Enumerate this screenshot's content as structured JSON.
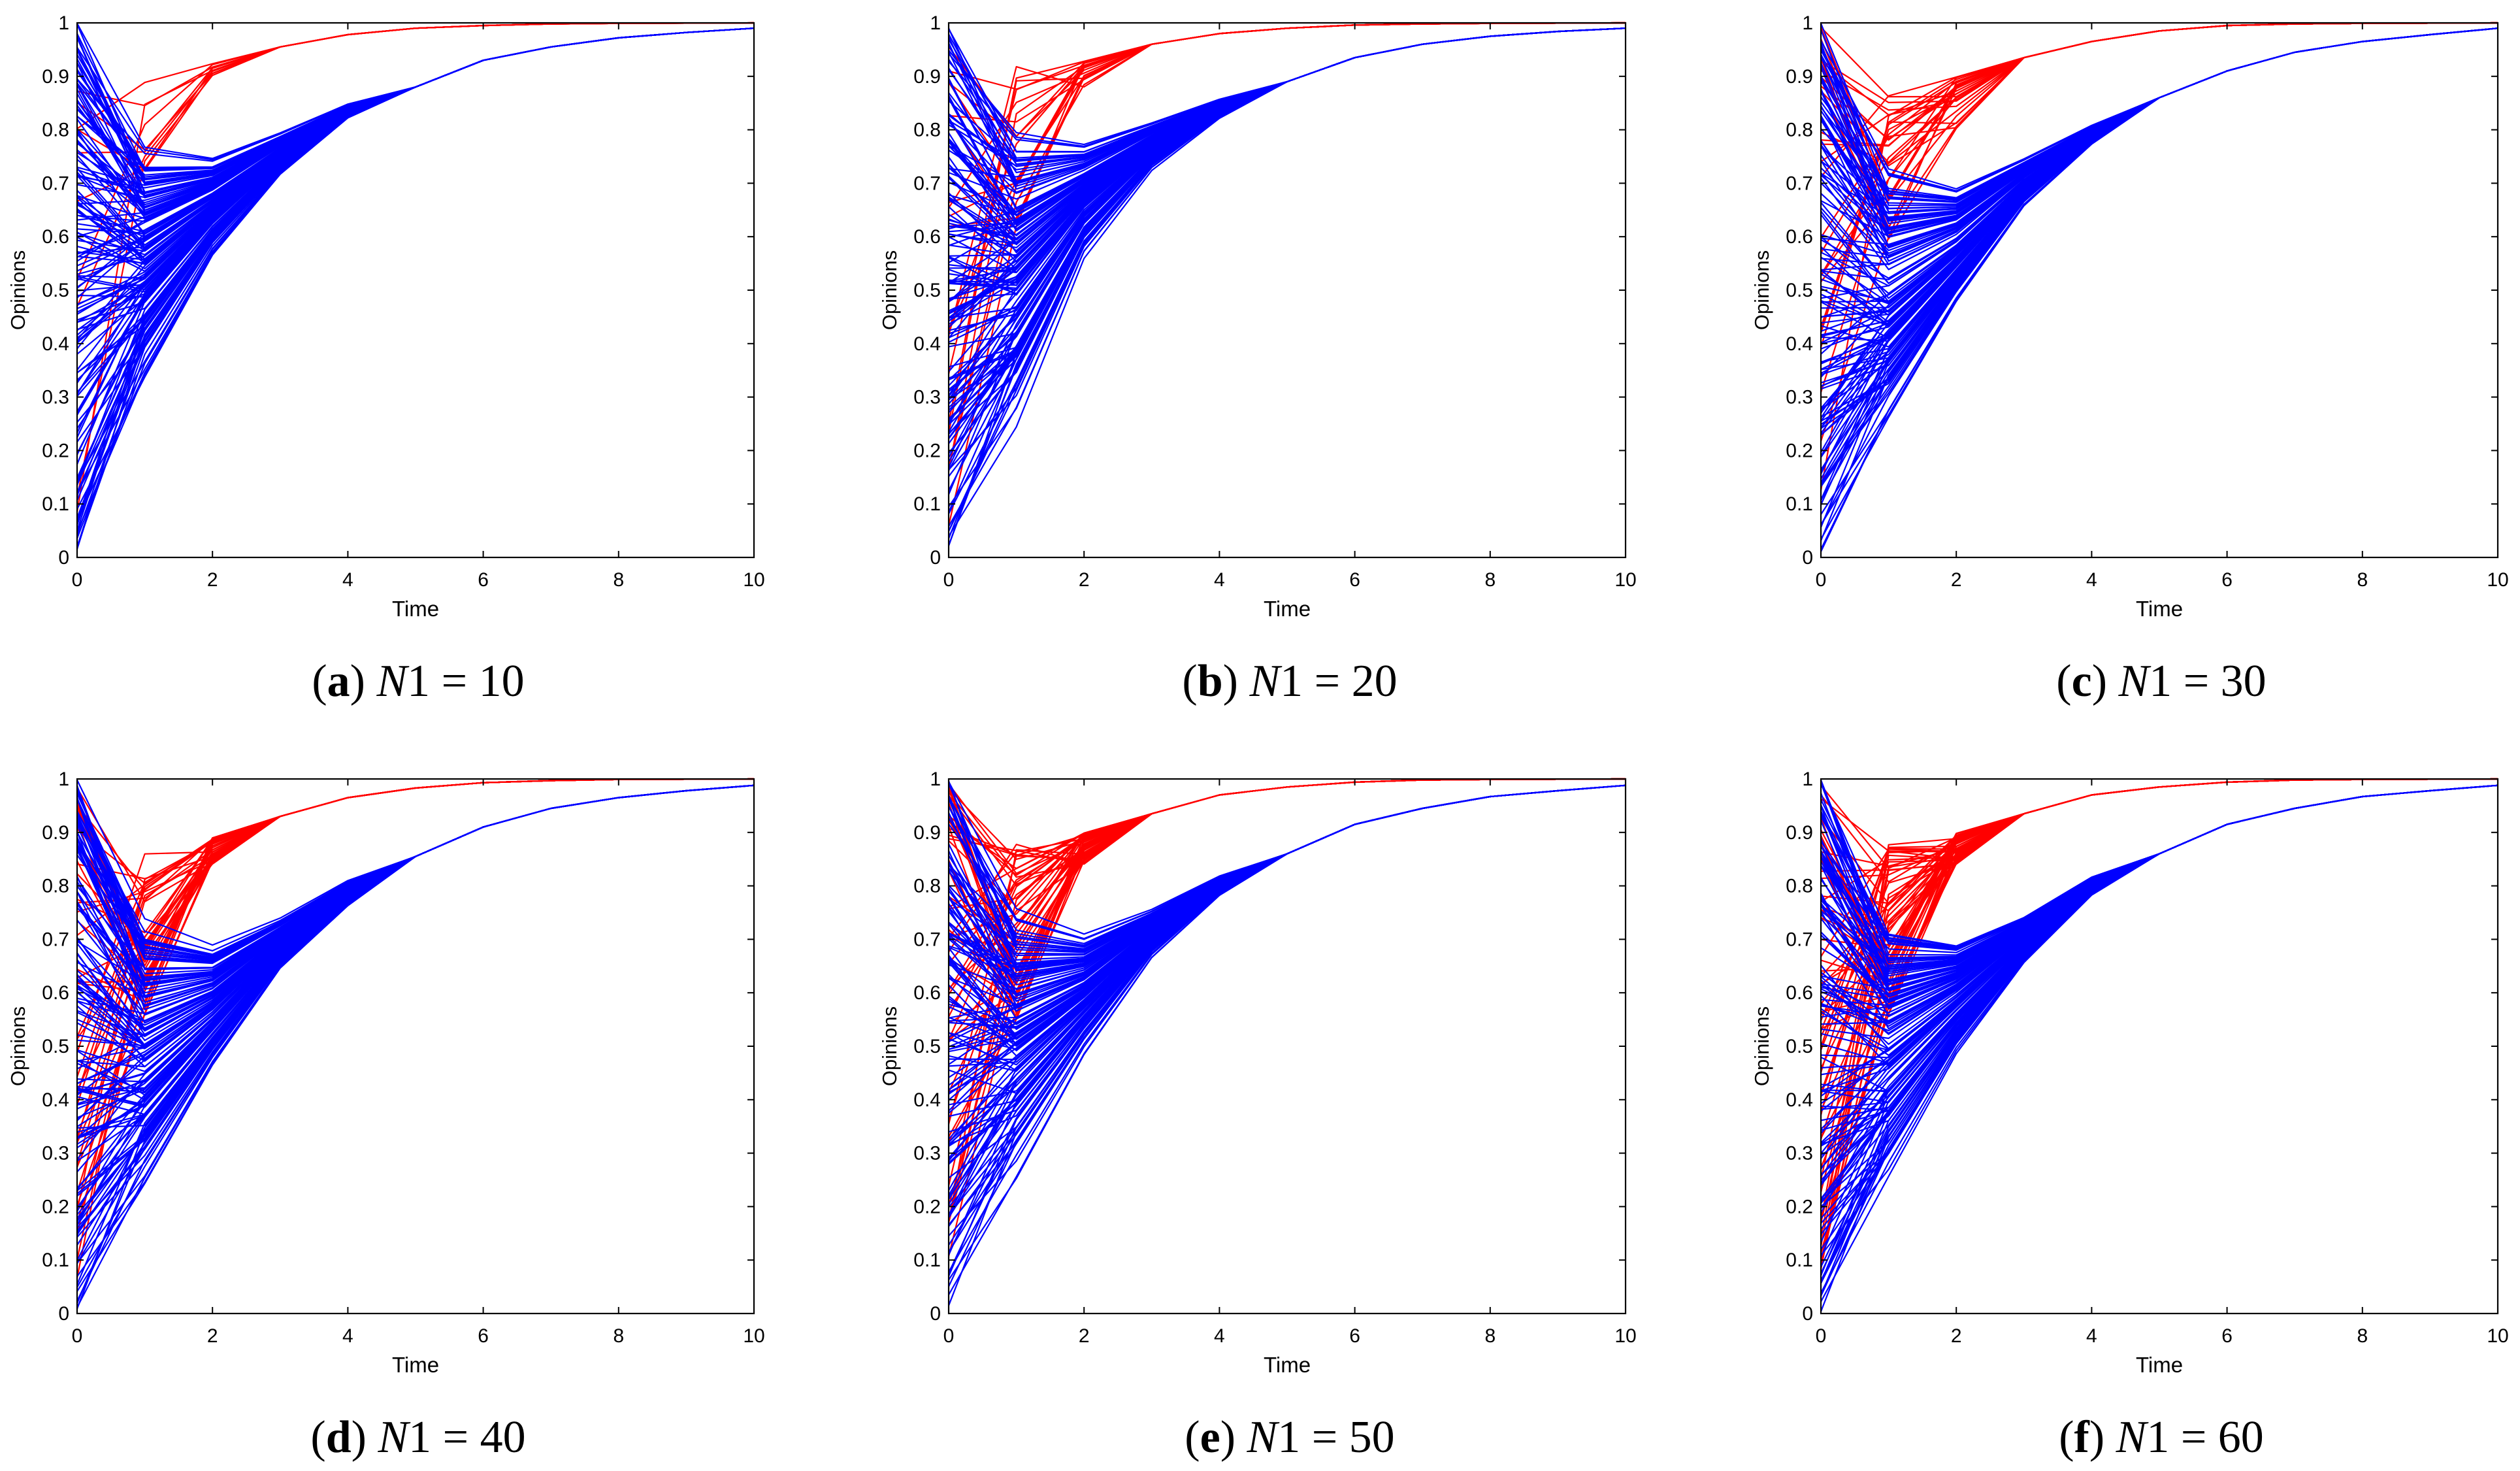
{
  "figure": {
    "panels": [
      {
        "letter": "a",
        "var": "N",
        "rest": "1 = 10"
      },
      {
        "letter": "b",
        "var": "N",
        "rest": "1 = 20"
      },
      {
        "letter": "c",
        "var": "N",
        "rest": "1 = 30"
      },
      {
        "letter": "d",
        "var": "N",
        "rest": "1 = 40"
      },
      {
        "letter": "e",
        "var": "N",
        "rest": "1 = 50"
      },
      {
        "letter": "f",
        "var": "N",
        "rest": "1 = 60"
      }
    ]
  },
  "chart_data": [
    {
      "type": "line",
      "caption": "(a) N1 = 10",
      "xlabel": "Time",
      "ylabel": "Opinions",
      "xlim": [
        0,
        10
      ],
      "ylim": [
        0,
        1
      ],
      "xticks": [
        "0",
        "2",
        "4",
        "6",
        "8",
        "10"
      ],
      "yticks": [
        "0",
        "0.1",
        "0.2",
        "0.3",
        "0.4",
        "0.5",
        "0.6",
        "0.7",
        "0.8",
        "0.9",
        "1"
      ],
      "grid": false,
      "series": [
        {
          "name": "red agents",
          "color": "#ff0000",
          "count": 10,
          "t1_range": [
            0.72,
            0.9
          ],
          "t2_range": [
            0.9,
            0.93
          ],
          "consensus": [
            0.955,
            0.978,
            0.99,
            0.995,
            0.998,
            0.999,
            0.9995,
            1.0
          ]
        },
        {
          "name": "blue agents",
          "color": "#0000ff",
          "count": 150,
          "t1_range": [
            0.3,
            0.8
          ],
          "t2_range": [
            0.55,
            0.76
          ],
          "t3_range": [
            0.71,
            0.8
          ],
          "t4_range": [
            0.82,
            0.85
          ],
          "consensus": [
            0.88,
            0.93,
            0.955,
            0.972,
            0.982,
            0.99
          ]
        }
      ]
    },
    {
      "type": "line",
      "caption": "(b) N1 = 20",
      "xlabel": "Time",
      "ylabel": "Opinions",
      "xlim": [
        0,
        10
      ],
      "ylim": [
        0,
        1
      ],
      "xticks": [
        "0",
        "2",
        "4",
        "6",
        "8",
        "10"
      ],
      "yticks": [
        "0",
        "0.1",
        "0.2",
        "0.3",
        "0.4",
        "0.5",
        "0.6",
        "0.7",
        "0.8",
        "0.9",
        "1"
      ],
      "grid": false,
      "series": [
        {
          "name": "red agents",
          "color": "#ff0000",
          "count": 20,
          "t1_range": [
            0.62,
            0.93
          ],
          "t2_range": [
            0.88,
            0.93
          ],
          "consensus": [
            0.96,
            0.98,
            0.99,
            0.996,
            0.998,
            0.999,
            0.9995,
            1.0
          ]
        },
        {
          "name": "blue agents",
          "color": "#0000ff",
          "count": 150,
          "t1_range": [
            0.22,
            0.84
          ],
          "t2_range": [
            0.55,
            0.79
          ],
          "t3_range": [
            0.72,
            0.82
          ],
          "t4_range": [
            0.82,
            0.86
          ],
          "consensus": [
            0.89,
            0.935,
            0.96,
            0.975,
            0.984,
            0.99
          ]
        }
      ]
    },
    {
      "type": "line",
      "caption": "(c) N1 = 30",
      "xlabel": "Time",
      "ylabel": "Opinions",
      "xlim": [
        0,
        10
      ],
      "ylim": [
        0,
        1
      ],
      "xticks": [
        "0",
        "2",
        "4",
        "6",
        "8",
        "10"
      ],
      "yticks": [
        "0",
        "0.1",
        "0.2",
        "0.3",
        "0.4",
        "0.5",
        "0.6",
        "0.7",
        "0.8",
        "0.9",
        "1"
      ],
      "grid": false,
      "series": [
        {
          "name": "red agents",
          "color": "#ff0000",
          "count": 30,
          "t1_range": [
            0.55,
            0.87
          ],
          "t2_range": [
            0.8,
            0.9
          ],
          "consensus": [
            0.935,
            0.965,
            0.985,
            0.995,
            0.998,
            0.999,
            0.9995,
            1.0
          ]
        },
        {
          "name": "blue agents",
          "color": "#0000ff",
          "count": 140,
          "t1_range": [
            0.22,
            0.75
          ],
          "t2_range": [
            0.46,
            0.7
          ],
          "t3_range": [
            0.65,
            0.75
          ],
          "t4_range": [
            0.77,
            0.81
          ],
          "consensus": [
            0.86,
            0.91,
            0.945,
            0.965,
            0.978,
            0.99
          ]
        }
      ]
    },
    {
      "type": "line",
      "caption": "(d) N1 = 40",
      "xlabel": "Time",
      "ylabel": "Opinions",
      "xlim": [
        0,
        10
      ],
      "ylim": [
        0,
        1
      ],
      "xticks": [
        "0",
        "2",
        "4",
        "6",
        "8",
        "10"
      ],
      "yticks": [
        "0",
        "0.1",
        "0.2",
        "0.3",
        "0.4",
        "0.5",
        "0.6",
        "0.7",
        "0.8",
        "0.9",
        "1"
      ],
      "grid": false,
      "series": [
        {
          "name": "red agents",
          "color": "#ff0000",
          "count": 40,
          "t1_range": [
            0.55,
            0.87
          ],
          "t2_range": [
            0.84,
            0.89
          ],
          "consensus": [
            0.93,
            0.965,
            0.983,
            0.993,
            0.997,
            0.999,
            0.9995,
            1.0
          ]
        },
        {
          "name": "blue agents",
          "color": "#0000ff",
          "count": 140,
          "t1_range": [
            0.21,
            0.74
          ],
          "t2_range": [
            0.45,
            0.69
          ],
          "t3_range": [
            0.64,
            0.74
          ],
          "t4_range": [
            0.76,
            0.81
          ],
          "consensus": [
            0.855,
            0.91,
            0.945,
            0.965,
            0.978,
            0.988
          ]
        }
      ]
    },
    {
      "type": "line",
      "caption": "(e) N1 = 50",
      "xlabel": "Time",
      "ylabel": "Opinions",
      "xlim": [
        0,
        10
      ],
      "ylim": [
        0,
        1
      ],
      "xticks": [
        "0",
        "2",
        "4",
        "6",
        "8",
        "10"
      ],
      "yticks": [
        "0",
        "0.1",
        "0.2",
        "0.3",
        "0.4",
        "0.5",
        "0.6",
        "0.7",
        "0.8",
        "0.9",
        "1"
      ],
      "grid": false,
      "series": [
        {
          "name": "red agents",
          "color": "#ff0000",
          "count": 50,
          "t1_range": [
            0.55,
            0.88
          ],
          "t2_range": [
            0.84,
            0.9
          ],
          "consensus": [
            0.935,
            0.97,
            0.985,
            0.994,
            0.998,
            0.999,
            0.9995,
            1.0
          ]
        },
        {
          "name": "blue agents",
          "color": "#0000ff",
          "count": 130,
          "t1_range": [
            0.22,
            0.78
          ],
          "t2_range": [
            0.47,
            0.72
          ],
          "t3_range": [
            0.66,
            0.76
          ],
          "t4_range": [
            0.78,
            0.82
          ],
          "consensus": [
            0.86,
            0.915,
            0.945,
            0.967,
            0.978,
            0.988
          ]
        }
      ]
    },
    {
      "type": "line",
      "caption": "(f) N1 = 60",
      "xlabel": "Time",
      "ylabel": "Opinions",
      "xlim": [
        0,
        10
      ],
      "ylim": [
        0,
        1
      ],
      "xticks": [
        "0",
        "2",
        "4",
        "6",
        "8",
        "10"
      ],
      "yticks": [
        "0",
        "0.1",
        "0.2",
        "0.3",
        "0.4",
        "0.5",
        "0.6",
        "0.7",
        "0.8",
        "0.9",
        "1"
      ],
      "grid": false,
      "series": [
        {
          "name": "red agents",
          "color": "#ff0000",
          "count": 60,
          "t1_range": [
            0.55,
            0.88
          ],
          "t2_range": [
            0.84,
            0.9
          ],
          "consensus": [
            0.935,
            0.97,
            0.985,
            0.994,
            0.998,
            0.999,
            0.9995,
            1.0
          ]
        },
        {
          "name": "blue agents",
          "color": "#0000ff",
          "count": 130,
          "t1_range": [
            0.22,
            0.76
          ],
          "t2_range": [
            0.47,
            0.71
          ],
          "t3_range": [
            0.65,
            0.75
          ],
          "t4_range": [
            0.78,
            0.82
          ],
          "consensus": [
            0.86,
            0.915,
            0.945,
            0.967,
            0.978,
            0.988
          ]
        }
      ]
    }
  ]
}
